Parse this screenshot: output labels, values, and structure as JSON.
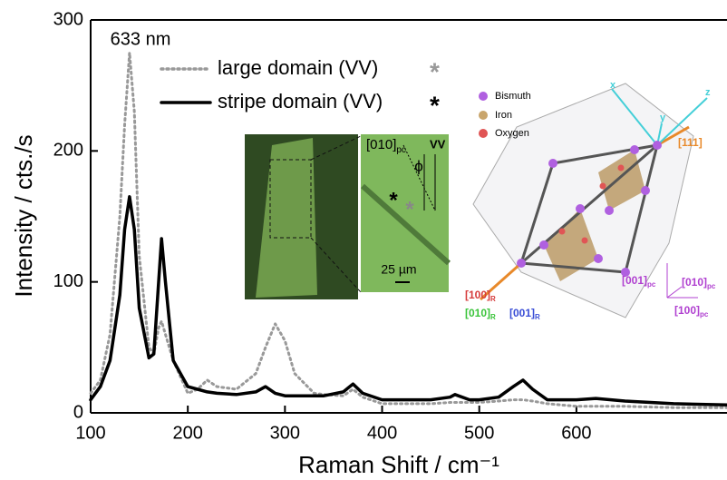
{
  "chart_data": {
    "type": "line",
    "xlabel": "Raman Shift / cm⁻¹",
    "ylabel": "Intensity / cts./s",
    "annotations": [
      "633 nm"
    ],
    "x": [
      100,
      110,
      120,
      130,
      135,
      140,
      145,
      150,
      160,
      165,
      170,
      173,
      177,
      185,
      200,
      210,
      220,
      230,
      250,
      270,
      280,
      290,
      300,
      310,
      330,
      340,
      360,
      370,
      380,
      400,
      450,
      470,
      475,
      490,
      500,
      520,
      535,
      545,
      555,
      570,
      600,
      620,
      650,
      700,
      755
    ],
    "series": [
      {
        "name": "large domain (VV)",
        "symbol": "*",
        "color": "#999999",
        "dash": "dotted",
        "values": [
          15,
          25,
          60,
          150,
          220,
          275,
          230,
          120,
          50,
          45,
          65,
          70,
          60,
          40,
          15,
          18,
          25,
          20,
          18,
          30,
          50,
          68,
          55,
          30,
          15,
          14,
          13,
          18,
          12,
          7,
          7,
          8,
          8,
          8,
          8,
          9,
          10,
          10,
          9,
          7,
          5,
          5,
          5,
          4,
          4
        ]
      },
      {
        "name": "stripe domain (VV)",
        "symbol": "*",
        "color": "#000000",
        "dash": "solid",
        "values": [
          10,
          20,
          40,
          90,
          140,
          165,
          140,
          80,
          42,
          45,
          100,
          133,
          100,
          40,
          20,
          18,
          16,
          15,
          14,
          16,
          20,
          15,
          13,
          13,
          13,
          13,
          16,
          22,
          15,
          10,
          10,
          12,
          14,
          10,
          10,
          12,
          20,
          25,
          18,
          10,
          10,
          11,
          9,
          7,
          6
        ]
      }
    ],
    "xlim": [
      100,
      755
    ],
    "ylim": [
      0,
      300
    ],
    "xticks": [
      100,
      200,
      300,
      400,
      500,
      600
    ],
    "yticks": [
      0,
      100,
      200,
      300
    ]
  },
  "inset_micrograph": {
    "direction": {
      "main": "[010]",
      "sub": "pc"
    },
    "angle": "ϕ",
    "polarization": "VV",
    "scale": "25 µm",
    "marks": [
      "*",
      "*"
    ]
  },
  "inset_crystal": {
    "legend": [
      "Bismuth",
      "Iron",
      "Oxygen"
    ],
    "axes": [
      "x",
      "y",
      "z"
    ],
    "diagonal": "[111]",
    "rhombohedral": [
      {
        "main": "[100]",
        "sub": "R"
      },
      {
        "main": "[010]",
        "sub": "R"
      },
      {
        "main": "[001]",
        "sub": "R"
      }
    ],
    "pseudocubic": [
      {
        "main": "[001]",
        "sub": "pc"
      },
      {
        "main": "[010]",
        "sub": "pc"
      },
      {
        "main": "[100]",
        "sub": "pc"
      }
    ]
  }
}
